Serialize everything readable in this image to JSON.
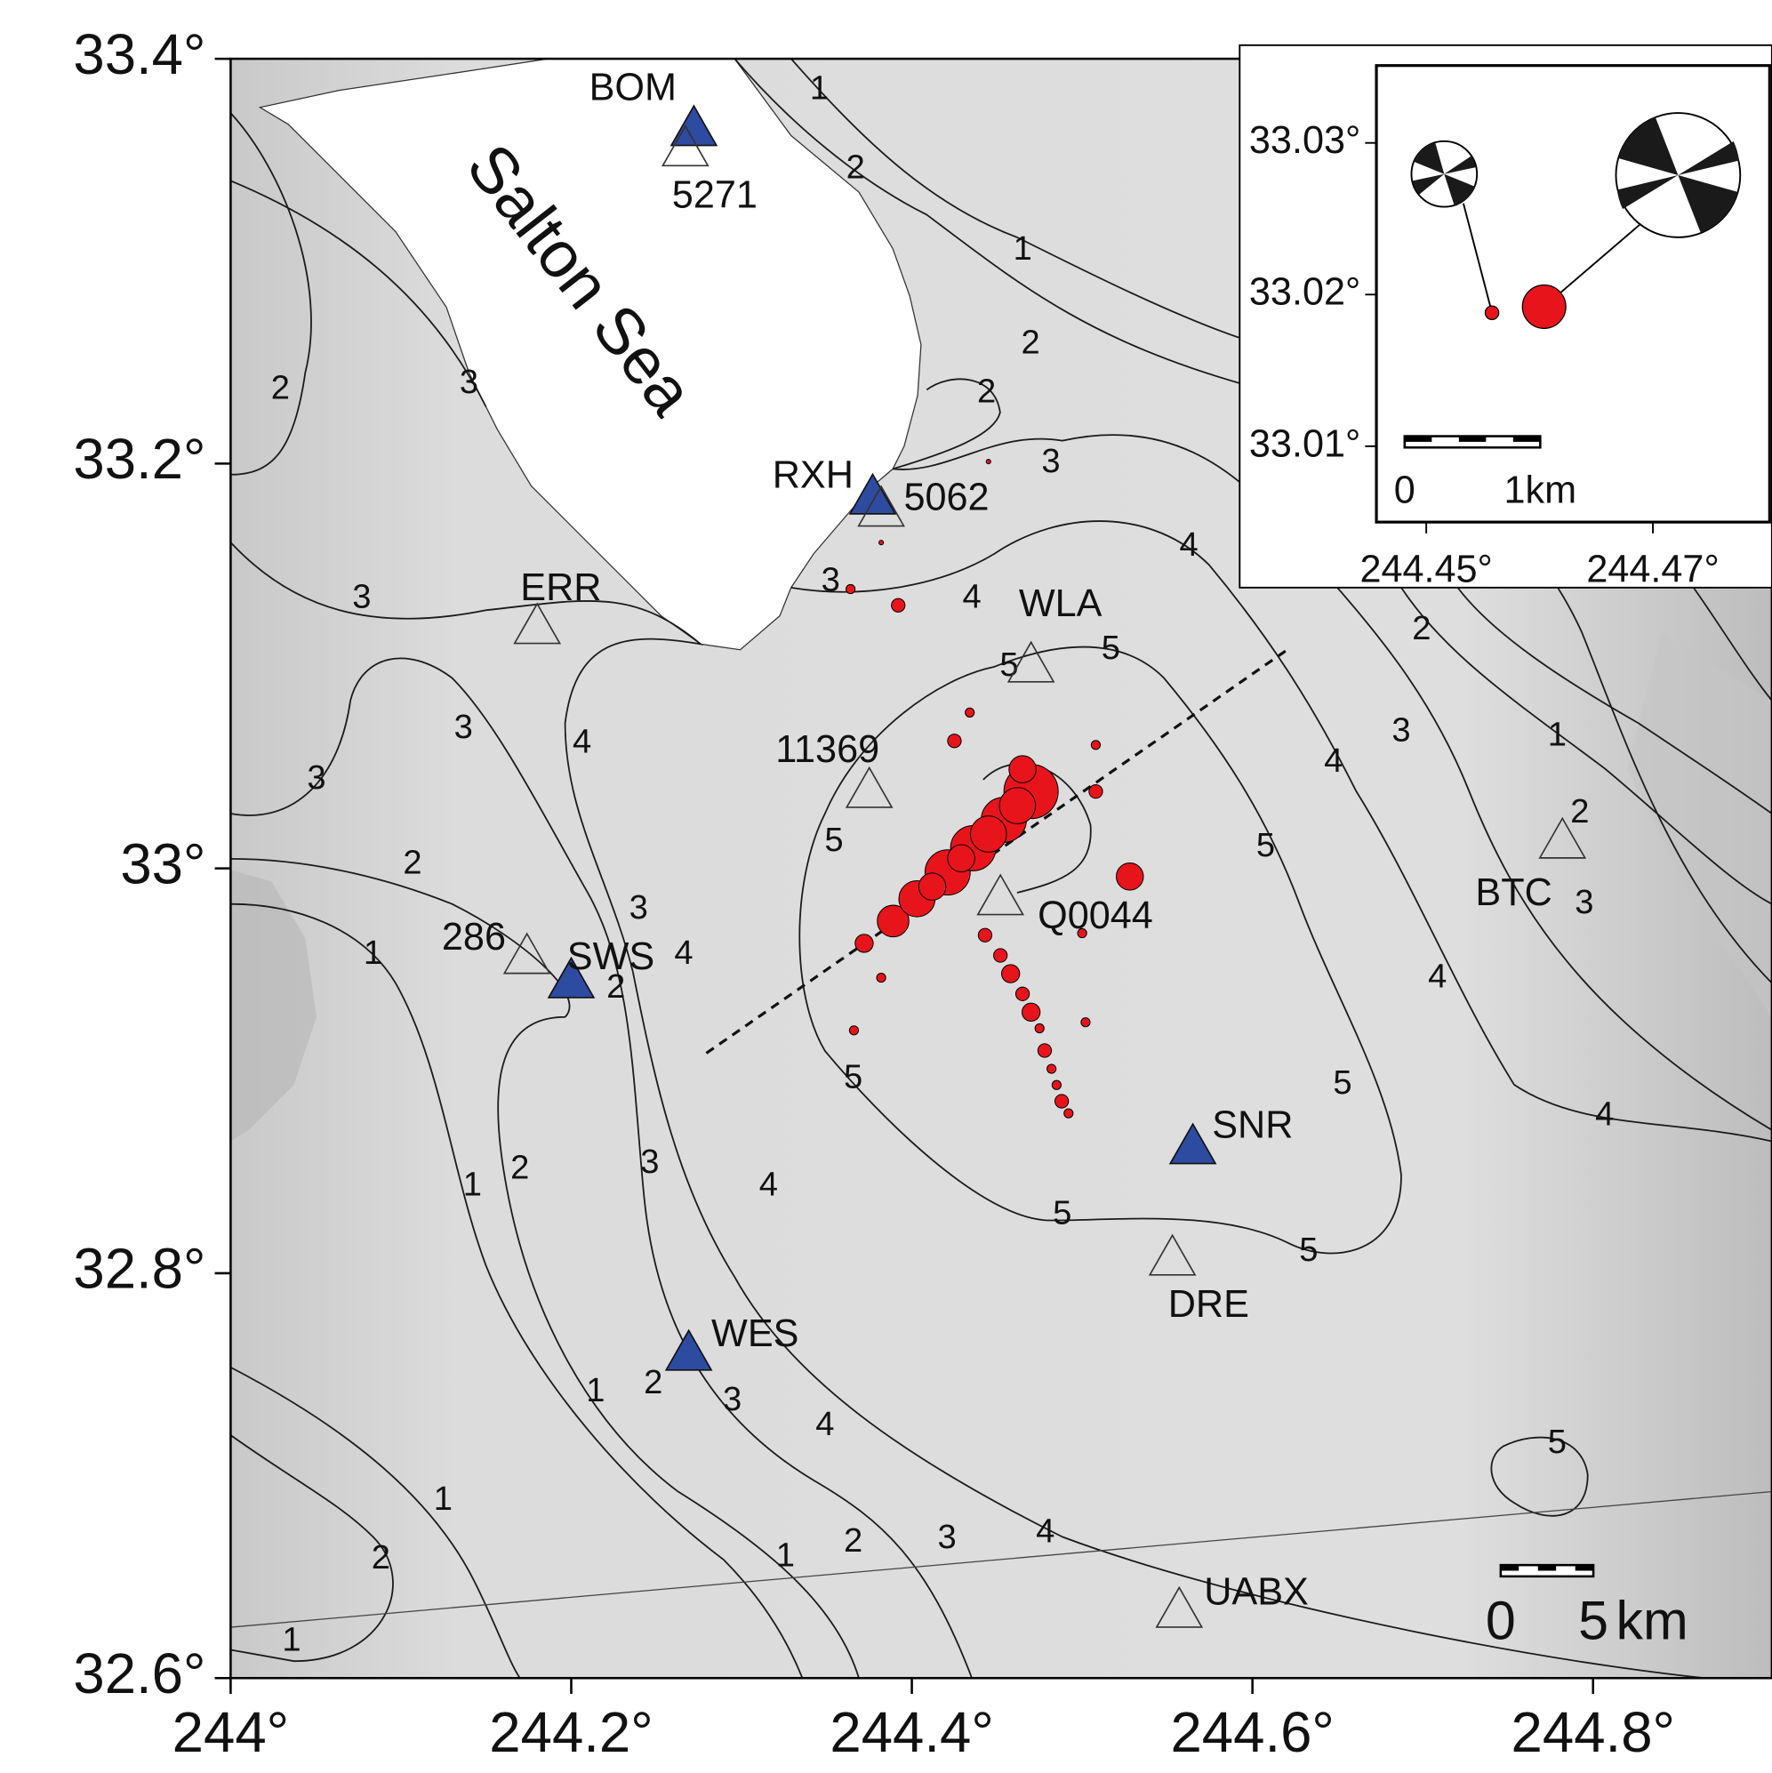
{
  "map": {
    "type": "map",
    "xlim": [
      244,
      244.905
    ],
    "ylim": [
      32.6,
      33.4
    ],
    "xticks": [
      {
        "value": 244,
        "label": "244°"
      },
      {
        "value": 244.2,
        "label": "244.2°"
      },
      {
        "value": 244.4,
        "label": "244.4°"
      },
      {
        "value": 244.6,
        "label": "244.6°"
      },
      {
        "value": 244.8,
        "label": "244.8°"
      }
    ],
    "yticks": [
      {
        "value": 32.6,
        "label": "32.6°"
      },
      {
        "value": 32.8,
        "label": "32.8°"
      },
      {
        "value": 33,
        "label": "33°"
      },
      {
        "value": 33.2,
        "label": "33.2°"
      },
      {
        "value": 33.4,
        "label": "33.4°"
      }
    ],
    "feature_label": "Salton Sea",
    "station_fill_color": "#2d4ba0",
    "quake_color": "#e8141b",
    "stations": [
      {
        "name": "BOM",
        "lon": 244.272,
        "lat": 33.365,
        "filled": true
      },
      {
        "name": "5271",
        "lon": 244.267,
        "lat": 33.355,
        "filled": false
      },
      {
        "name": "RXH",
        "lon": 244.377,
        "lat": 33.183,
        "filled": true
      },
      {
        "name": "5062",
        "lon": 244.382,
        "lat": 33.177,
        "filled": false
      },
      {
        "name": "ERR",
        "lon": 244.18,
        "lat": 33.119,
        "filled": false
      },
      {
        "name": "WLA",
        "lon": 244.47,
        "lat": 33.1,
        "filled": false
      },
      {
        "name": "11369",
        "lon": 244.375,
        "lat": 33.038,
        "filled": false
      },
      {
        "name": "Q0044",
        "lon": 244.452,
        "lat": 32.985,
        "filled": false
      },
      {
        "name": "BTC",
        "lon": 244.782,
        "lat": 33.013,
        "filled": false
      },
      {
        "name": "286",
        "lon": 244.174,
        "lat": 32.956,
        "filled": false
      },
      {
        "name": "SWS",
        "lon": 244.2,
        "lat": 32.944,
        "filled": true
      },
      {
        "name": "SNR",
        "lon": 244.565,
        "lat": 32.862,
        "filled": true
      },
      {
        "name": "DRE",
        "lon": 244.553,
        "lat": 32.807,
        "filled": false
      },
      {
        "name": "WES",
        "lon": 244.269,
        "lat": 32.76,
        "filled": true
      },
      {
        "name": "UABX",
        "lon": 244.557,
        "lat": 32.633,
        "filled": false
      }
    ],
    "quakes": [
      {
        "lon": 244.372,
        "lat": 32.963,
        "mag": 2
      },
      {
        "lon": 244.389,
        "lat": 32.974,
        "mag": 3.5
      },
      {
        "lon": 244.403,
        "lat": 32.985,
        "mag": 4
      },
      {
        "lon": 244.421,
        "lat": 32.998,
        "mag": 5
      },
      {
        "lon": 244.436,
        "lat": 33.01,
        "mag": 5
      },
      {
        "lon": 244.454,
        "lat": 33.024,
        "mag": 5
      },
      {
        "lon": 244.47,
        "lat": 33.038,
        "mag": 6
      },
      {
        "lon": 244.465,
        "lat": 33.049,
        "mag": 3
      },
      {
        "lon": 244.425,
        "lat": 33.063,
        "mag": 1.5
      },
      {
        "lon": 244.434,
        "lat": 33.077,
        "mag": 1
      },
      {
        "lon": 244.508,
        "lat": 33.061,
        "mag": 1
      },
      {
        "lon": 244.528,
        "lat": 32.996,
        "mag": 3
      },
      {
        "lon": 244.443,
        "lat": 32.967,
        "mag": 1.5
      },
      {
        "lon": 244.452,
        "lat": 32.957,
        "mag": 1.5
      },
      {
        "lon": 244.458,
        "lat": 32.948,
        "mag": 2
      },
      {
        "lon": 244.465,
        "lat": 32.938,
        "mag": 1.5
      },
      {
        "lon": 244.47,
        "lat": 32.929,
        "mag": 2
      },
      {
        "lon": 244.475,
        "lat": 32.921,
        "mag": 1
      },
      {
        "lon": 244.478,
        "lat": 32.91,
        "mag": 1.5
      },
      {
        "lon": 244.482,
        "lat": 32.901,
        "mag": 1
      },
      {
        "lon": 244.485,
        "lat": 32.893,
        "mag": 1
      },
      {
        "lon": 244.488,
        "lat": 32.885,
        "mag": 1.5
      },
      {
        "lon": 244.492,
        "lat": 32.879,
        "mag": 1
      },
      {
        "lon": 244.502,
        "lat": 32.924,
        "mag": 1
      },
      {
        "lon": 244.5,
        "lat": 32.968,
        "mag": 1
      },
      {
        "lon": 244.382,
        "lat": 32.946,
        "mag": 1
      },
      {
        "lon": 244.366,
        "lat": 32.92,
        "mag": 1
      },
      {
        "lon": 244.392,
        "lat": 33.13,
        "mag": 1.5
      },
      {
        "lon": 244.364,
        "lat": 33.138,
        "mag": 1
      },
      {
        "lon": 244.382,
        "lat": 33.161,
        "mag": 0.5
      },
      {
        "lon": 244.445,
        "lat": 33.201,
        "mag": 0.5
      },
      {
        "lon": 244.508,
        "lat": 33.038,
        "mag": 1.5
      },
      {
        "lon": 244.429,
        "lat": 33.005,
        "mag": 3
      },
      {
        "lon": 244.412,
        "lat": 32.991,
        "mag": 3
      },
      {
        "lon": 244.445,
        "lat": 33.017,
        "mag": 4
      },
      {
        "lon": 244.462,
        "lat": 33.031,
        "mag": 4
      }
    ],
    "contour_labels": [
      "1",
      "2",
      "1",
      "2",
      "2",
      "3",
      "4",
      "2",
      "3",
      "3",
      "3",
      "3",
      "4",
      "2",
      "1",
      "2",
      "3",
      "4",
      "3",
      "4",
      "5",
      "5",
      "5",
      "5",
      "4",
      "3",
      "2",
      "1",
      "2",
      "3",
      "4",
      "5",
      "4",
      "5",
      "5",
      "5",
      "4",
      "3",
      "2",
      "1",
      "1",
      "2",
      "3",
      "4",
      "5",
      "1",
      "2",
      "1",
      "1",
      "2",
      "3",
      "4"
    ],
    "scale_bar": {
      "labels": [
        "0",
        "5",
        "km"
      ]
    },
    "inset": {
      "xlim": [
        244.4456,
        244.4803
      ],
      "ylim": [
        33.005,
        33.0351
      ],
      "xticks": [
        {
          "value": 244.45,
          "label": "244.45°"
        },
        {
          "value": 244.47,
          "label": "244.47°"
        }
      ],
      "yticks": [
        {
          "value": 33.01,
          "label": "33.01°"
        },
        {
          "value": 33.02,
          "label": "33.02°"
        },
        {
          "value": 33.03,
          "label": "33.03°"
        }
      ],
      "quakes": [
        {
          "lon": 244.4558,
          "lat": 33.0188,
          "mag": 1.5
        },
        {
          "lon": 244.4604,
          "lat": 33.0192,
          "mag": 4.8
        }
      ],
      "scale_bar": {
        "labels": [
          "0",
          "1km"
        ]
      }
    }
  }
}
